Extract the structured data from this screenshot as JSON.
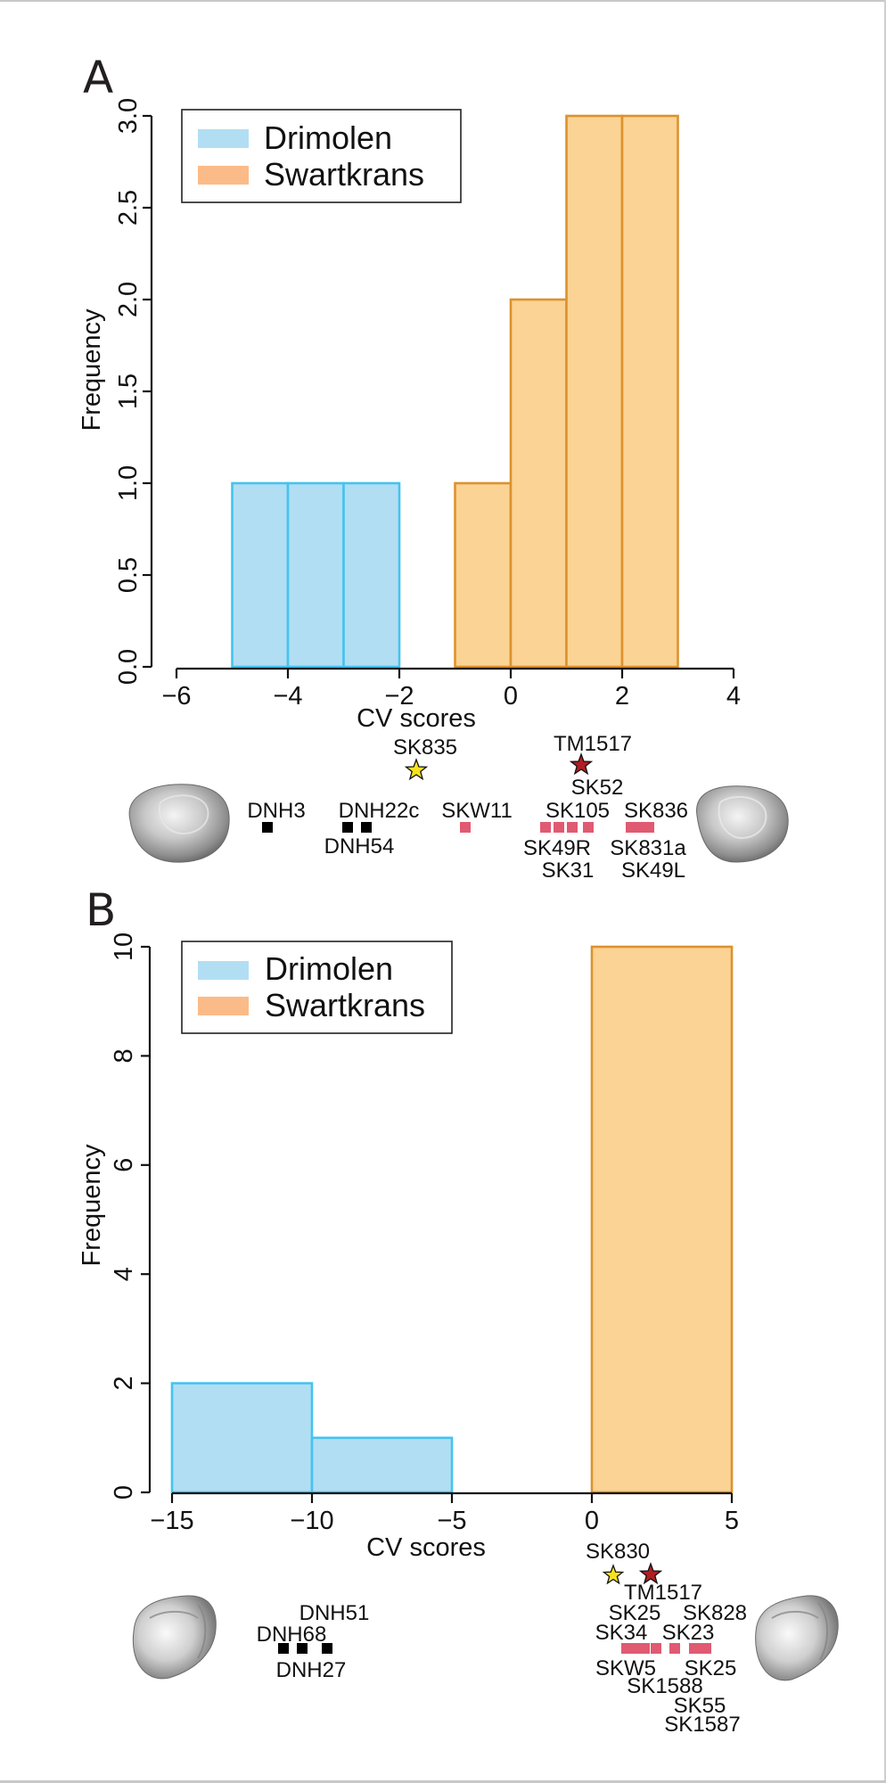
{
  "figure": {
    "colors": {
      "drimolen_fill": "#b2def3",
      "drimolen_stroke": "#45c3ef",
      "swartkrans_fill": "#fbd394",
      "swartkrans_stroke": "#dc922d",
      "legend_drimolen": "#b2def3",
      "legend_swartkrans": "#fbbb88",
      "drimolen_marker": "#000000",
      "swartkrans_marker": "#e05a72",
      "star_yellow": "#f7e21e",
      "star_red": "#b01e23"
    }
  },
  "chart_data": [
    {
      "panel": "A",
      "type": "bar",
      "title": "",
      "xlabel": "CV scores",
      "ylabel": "Frequency",
      "xlim": [
        -6,
        4
      ],
      "ylim": [
        0,
        3
      ],
      "xticks": [
        -6,
        -4,
        -2,
        0,
        2,
        4
      ],
      "xtick_labels": [
        "−6",
        "−4",
        "−2",
        "0",
        "2",
        "4"
      ],
      "yticks": [
        0,
        0.5,
        1,
        1.5,
        2,
        2.5,
        3
      ],
      "ytick_labels": [
        "0.0",
        "0.5",
        "1.0",
        "1.5",
        "2.0",
        "2.5",
        "3.0"
      ],
      "grid": false,
      "legend": {
        "placement": "top-left",
        "entries": [
          "Drimolen",
          "Swartkrans"
        ]
      },
      "series": [
        {
          "name": "Drimolen",
          "bins": [
            [
              -5,
              -4
            ],
            [
              -4,
              -3
            ],
            [
              -3,
              -2
            ]
          ],
          "values": [
            1,
            1,
            1
          ]
        },
        {
          "name": "Swartkrans",
          "bins": [
            [
              -1,
              0
            ],
            [
              0,
              1
            ],
            [
              1,
              2
            ],
            [
              2,
              3
            ]
          ],
          "values": [
            1,
            2,
            3,
            3
          ]
        }
      ],
      "annotations": {
        "stars": [
          {
            "label": "SK835",
            "color": "yellow"
          },
          {
            "label": "TM1517",
            "color": "red"
          }
        ],
        "drimolen_specimens": [
          "DNH3",
          "DNH22c",
          "DNH54"
        ],
        "swartkrans_specimens": [
          "SKW11",
          "SK52",
          "SK105",
          "SK836",
          "SK49R",
          "SK831a",
          "SK31",
          "SK49L"
        ]
      }
    },
    {
      "panel": "B",
      "type": "bar",
      "title": "",
      "xlabel": "CV scores",
      "ylabel": "Frequency",
      "xlim": [
        -15,
        5
      ],
      "ylim": [
        0,
        10
      ],
      "xticks": [
        -15,
        -10,
        -5,
        0,
        5
      ],
      "xtick_labels": [
        "−15",
        "−10",
        "−5",
        "0",
        "5"
      ],
      "yticks": [
        0,
        2,
        4,
        6,
        8,
        10
      ],
      "ytick_labels": [
        "0",
        "2",
        "4",
        "6",
        "8",
        "10"
      ],
      "grid": false,
      "legend": {
        "placement": "top-left",
        "entries": [
          "Drimolen",
          "Swartkrans"
        ]
      },
      "series": [
        {
          "name": "Drimolen",
          "bins": [
            [
              -15,
              -10
            ],
            [
              -10,
              -5
            ]
          ],
          "values": [
            2,
            1
          ]
        },
        {
          "name": "Swartkrans",
          "bins": [
            [
              0,
              5
            ]
          ],
          "values": [
            10
          ]
        }
      ],
      "annotations": {
        "stars": [
          {
            "label": "SK830",
            "color": "yellow"
          },
          {
            "label": "TM1517",
            "color": "red"
          }
        ],
        "drimolen_specimens": [
          "DNH51",
          "DNH68",
          "DNH27"
        ],
        "swartkrans_specimens": [
          "SK25",
          "SK828",
          "SK34",
          "SK23",
          "SKW5",
          "SK25",
          "SK1588",
          "SK55",
          "SK1587"
        ]
      }
    }
  ],
  "panels": {
    "A": {
      "letter": "A",
      "legend": {
        "drimolen": "Drimolen",
        "swartkrans": "Swartkrans"
      },
      "labels": {
        "sk835": "SK835",
        "tm1517": "TM1517",
        "sk52": "SK52",
        "dnh3": "DNH3",
        "dnh22c": "DNH22c",
        "dnh54": "DNH54",
        "skw11": "SKW11",
        "sk105": "SK105",
        "sk836": "SK836",
        "sk49r": "SK49R",
        "sk831a": "SK831a",
        "sk31": "SK31",
        "sk49l": "SK49L"
      }
    },
    "B": {
      "letter": "B",
      "legend": {
        "drimolen": "Drimolen",
        "swartkrans": "Swartkrans"
      },
      "labels": {
        "dnh51": "DNH51",
        "dnh68": "DNH68",
        "dnh27": "DNH27",
        "sk830": "SK830",
        "tm1517": "TM1517",
        "sk25a": "SK25",
        "sk828": "SK828",
        "sk34": "SK34",
        "sk23": "SK23",
        "skw5": "SKW5",
        "sk25b": "SK25",
        "sk1588": "SK1588",
        "sk55": "SK55",
        "sk1587": "SK1587"
      }
    }
  }
}
